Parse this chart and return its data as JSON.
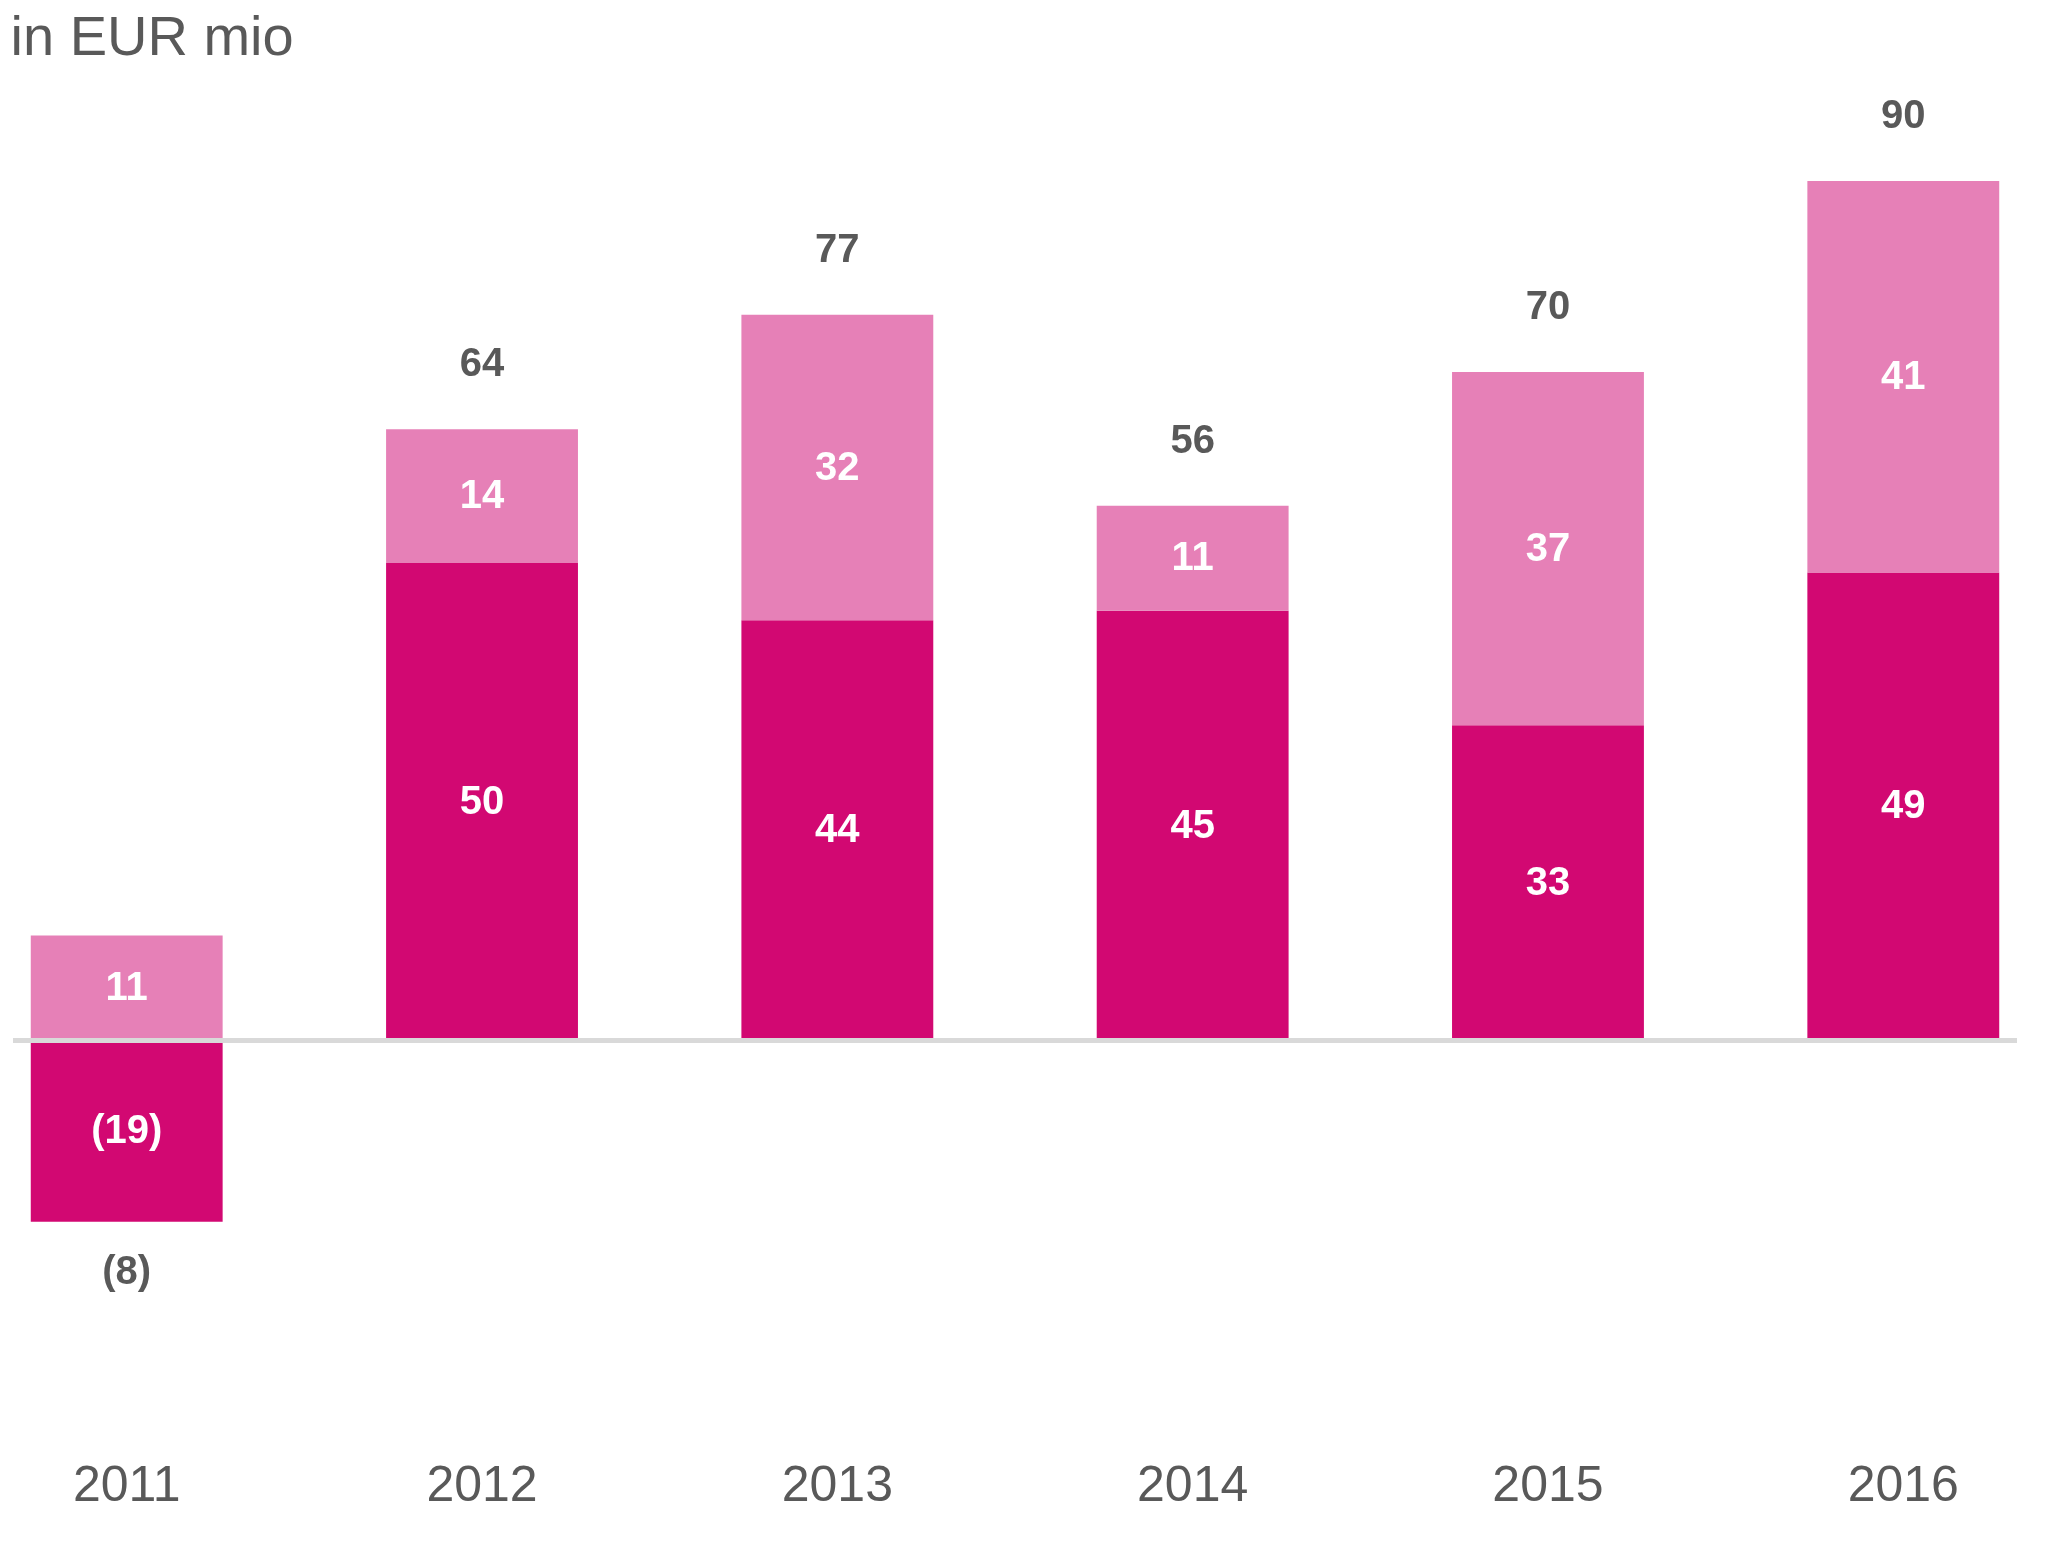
{
  "chart_data": {
    "type": "bar",
    "title": "in EUR mio",
    "categories": [
      "2011",
      "2012",
      "2013",
      "2014",
      "2015",
      "2016"
    ],
    "stacked": true,
    "legend": false,
    "series": [
      {
        "color": "#d20872",
        "values": [
          -19,
          50,
          44,
          45,
          33,
          49
        ],
        "value_labels": [
          "(19)",
          "50",
          "44",
          "45",
          "33",
          "49"
        ]
      },
      {
        "color": "#e680b7",
        "values": [
          11,
          14,
          32,
          11,
          37,
          41
        ],
        "value_labels": [
          "11",
          "14",
          "32",
          "11",
          "37",
          "41"
        ]
      }
    ],
    "totals": [
      "(8)",
      "64",
      "77",
      "56",
      "70",
      "90"
    ]
  }
}
